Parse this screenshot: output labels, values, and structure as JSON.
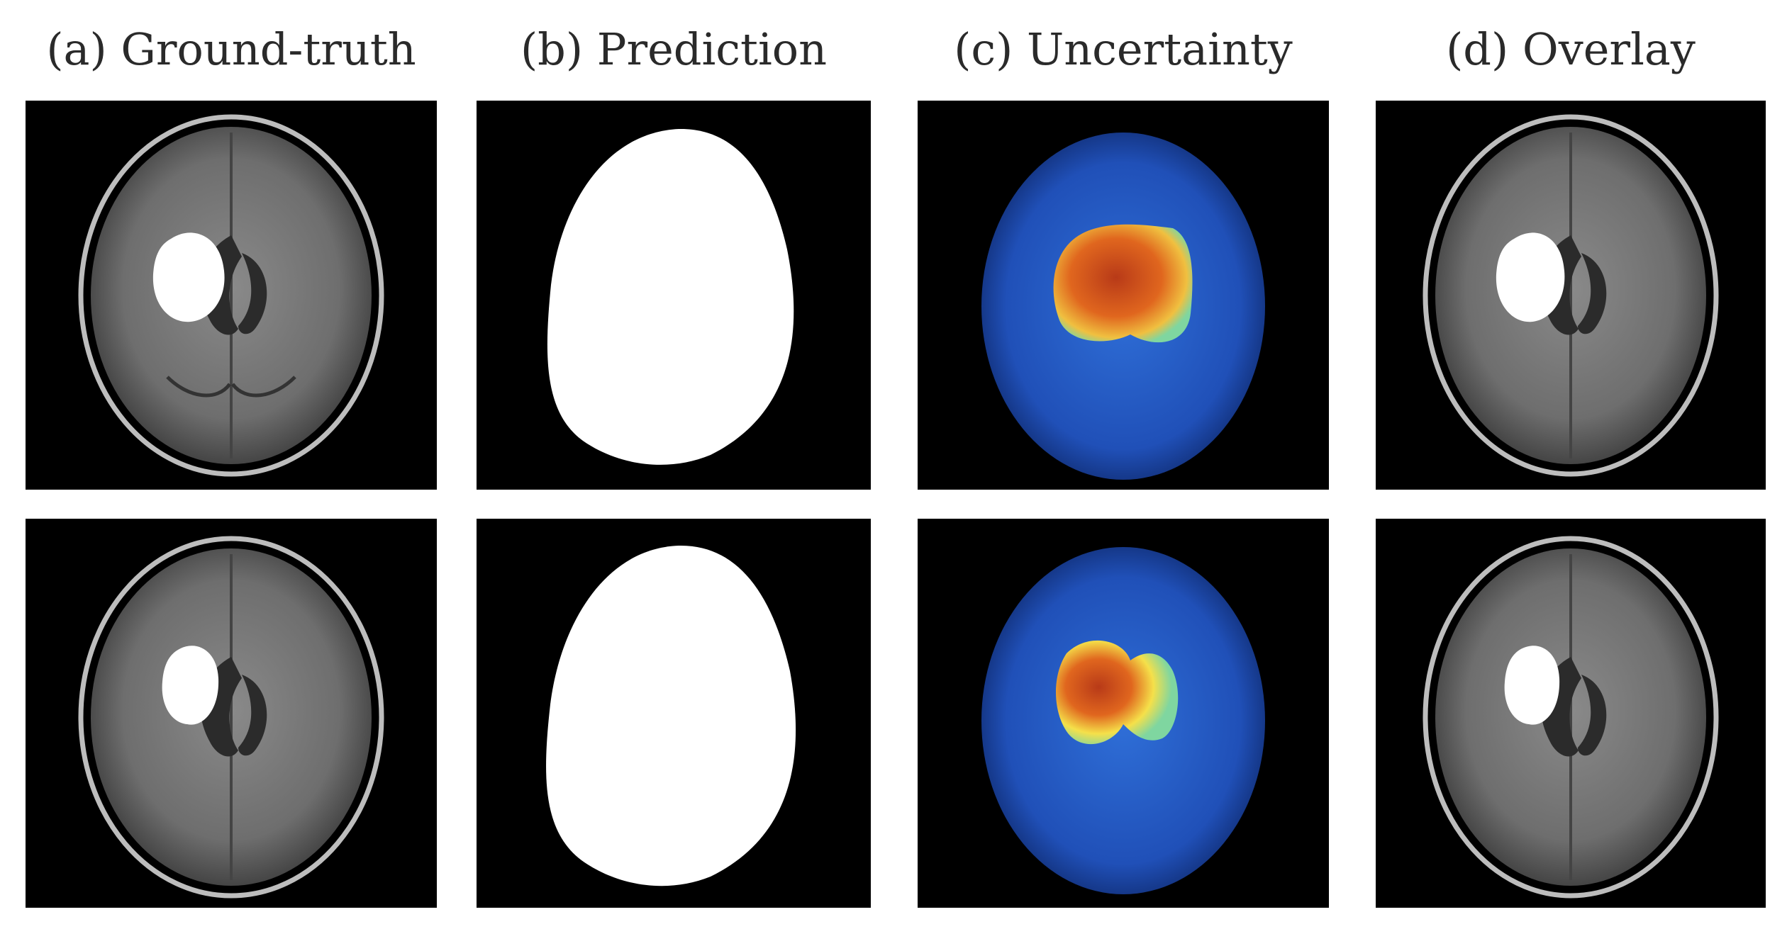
{
  "figure": {
    "columns": [
      {
        "id": "a",
        "title": "(a) Ground-truth",
        "kind": "mri-with-mask"
      },
      {
        "id": "b",
        "title": "(b) Prediction",
        "kind": "binary-mask"
      },
      {
        "id": "c",
        "title": "(c) Uncertainty",
        "kind": "uncertainty-heatmap"
      },
      {
        "id": "d",
        "title": "(d) Overlay",
        "kind": "mri-with-mask"
      }
    ],
    "rows": 2,
    "colors": {
      "background": "#000000",
      "mask": "#ffffff",
      "heatmap_low": "#1f4fb8",
      "heatmap_mid": "#f5e04a",
      "heatmap_high": "#c8431c"
    }
  }
}
